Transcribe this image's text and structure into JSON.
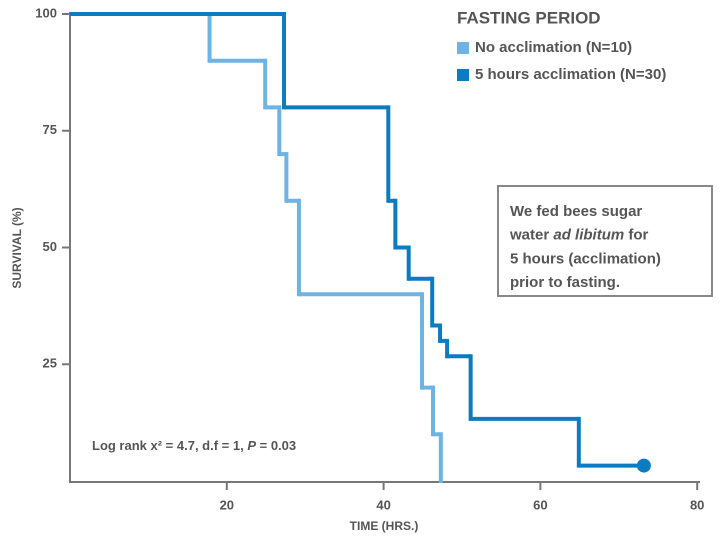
{
  "chart_data": {
    "type": "step",
    "xlabel": "TIME (HRS.)",
    "ylabel": "SURVIVAL (%)",
    "xlim": [
      0,
      80
    ],
    "ylim": [
      0,
      100
    ],
    "xticks": [
      20,
      40,
      60,
      80
    ],
    "yticks": [
      25,
      50,
      75,
      100
    ],
    "legend_title": "FASTING PERIOD",
    "legend": "upper right",
    "series": [
      {
        "name": "No acclimation (N=10)",
        "color": "#6db3e3",
        "end_marker": false,
        "x": [
          0,
          17.8,
          24.9,
          26.7,
          27.6,
          29.2,
          44.9,
          46.3,
          47.3
        ],
        "values": [
          100,
          90,
          80,
          70,
          60,
          40,
          20,
          10,
          0
        ]
      },
      {
        "name": "5 hours acclimation (N=30)",
        "color": "#0b7bc2",
        "end_marker": true,
        "x": [
          0,
          27.3,
          40.6,
          41.5,
          43.2,
          46.2,
          47.2,
          48.1,
          51.1,
          64.9,
          73.2
        ],
        "values": [
          100,
          80,
          60,
          50,
          43.3,
          33.3,
          30,
          26.7,
          13.3,
          3.3,
          3.3
        ]
      }
    ],
    "stats_text": [
      "Log rank x² = 4.7, d.f = 1, ",
      "P",
      " = 0.03"
    ],
    "note_lines": [
      [
        "We fed bees sugar"
      ],
      [
        "water ",
        "ad libitum",
        " for"
      ],
      [
        "5 hours (acclimation)"
      ],
      [
        "prior to fasting."
      ]
    ]
  }
}
